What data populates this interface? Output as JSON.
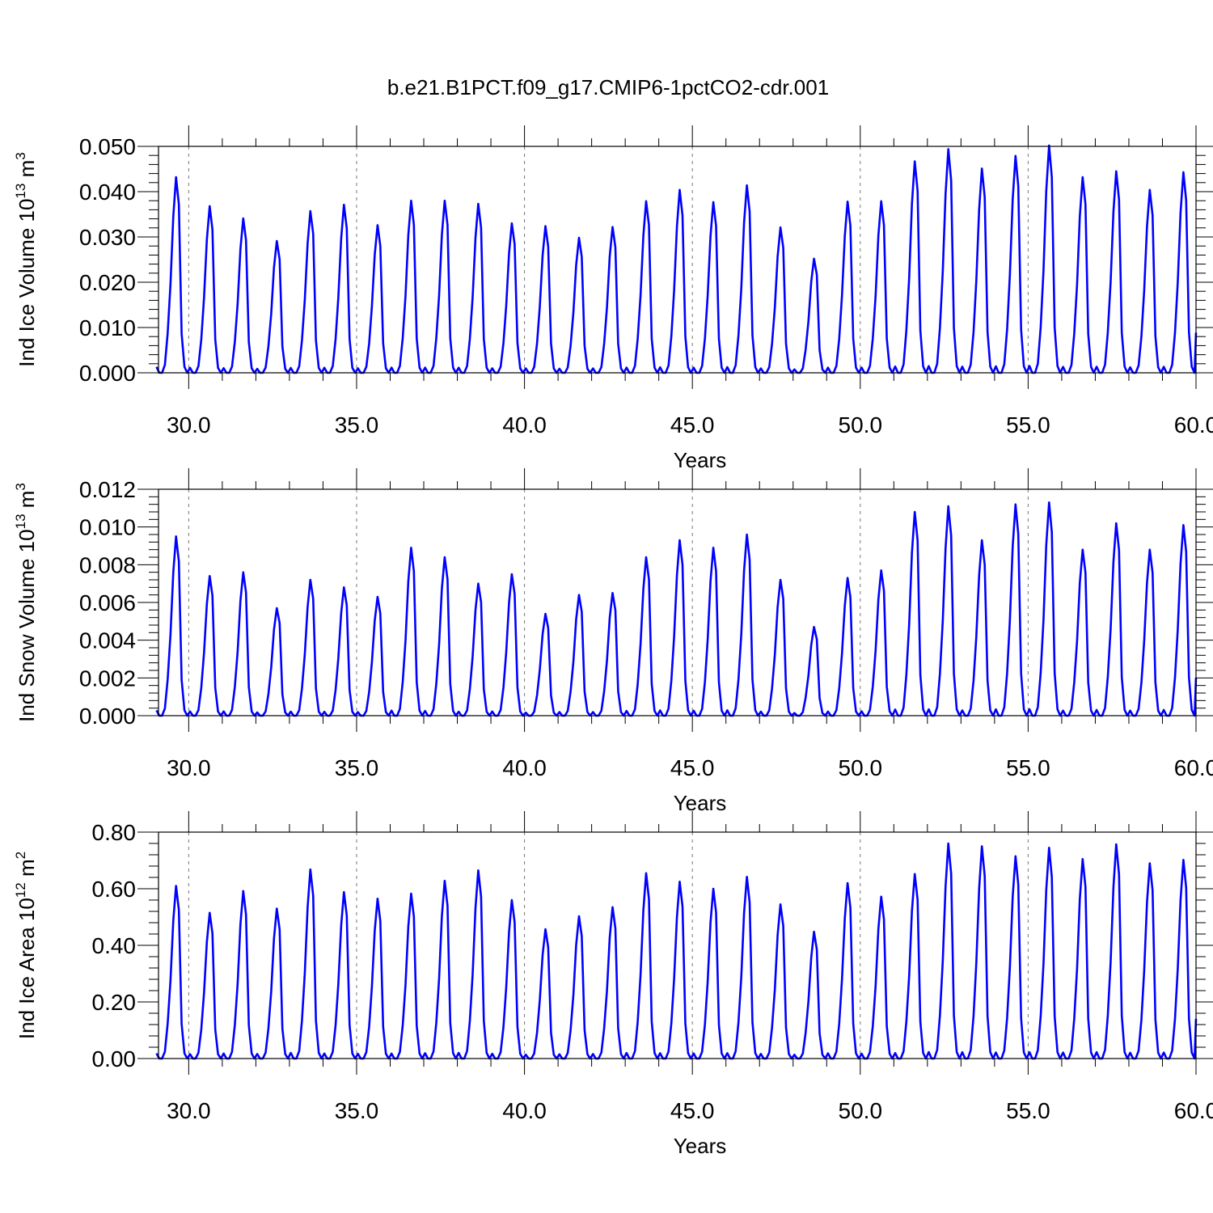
{
  "title": "b.e21.B1PCT.f09_g17.CMIP6-1pctCO2-cdr.001",
  "colors": {
    "line": "#0000ff",
    "grid": "#777777"
  },
  "chart_data": [
    {
      "type": "line",
      "xlabel": "Years",
      "ylabel_main": "Ind Ice Volume 10",
      "ylabel_exp": "13",
      "ylabel_unit": " m",
      "ylabel_unit_exp": "3",
      "xlim": [
        29.1,
        60.0
      ],
      "ylim": [
        0.0,
        0.05
      ],
      "xticks": [
        30,
        35,
        40,
        45,
        50,
        55,
        60
      ],
      "xtick_labels": [
        "30.0",
        "35.0",
        "40.0",
        "45.0",
        "50.0",
        "55.0",
        "60.0"
      ],
      "yticks": [
        0.0,
        0.01,
        0.02,
        0.03,
        0.04,
        0.05
      ],
      "ytick_labels": [
        "0.000",
        "0.010",
        "0.020",
        "0.030",
        "0.040",
        "0.050"
      ],
      "grid_x": true,
      "x_start": 29.04,
      "x_step": 0.0833333,
      "peaks": [
        0.0432,
        0.0368,
        0.0341,
        0.0291,
        0.0357,
        0.0371,
        0.0326,
        0.038,
        0.038,
        0.0373,
        0.033,
        0.0324,
        0.0298,
        0.0322,
        0.0379,
        0.0404,
        0.0377,
        0.0414,
        0.0321,
        0.0252,
        0.0378,
        0.0379,
        0.0467,
        0.0494,
        0.0451,
        0.0479,
        0.0502,
        0.0432,
        0.0445,
        0.0404,
        0.0443
      ]
    },
    {
      "type": "line",
      "xlabel": "Years",
      "ylabel_main": "Ind Snow Volume 10",
      "ylabel_exp": "13",
      "ylabel_unit": " m",
      "ylabel_unit_exp": "3",
      "xlim": [
        29.1,
        60.0
      ],
      "ylim": [
        0.0,
        0.012
      ],
      "xticks": [
        30,
        35,
        40,
        45,
        50,
        55,
        60
      ],
      "xtick_labels": [
        "30.0",
        "35.0",
        "40.0",
        "45.0",
        "50.0",
        "55.0",
        "60.0"
      ],
      "yticks": [
        0.0,
        0.002,
        0.004,
        0.006,
        0.008,
        0.01,
        0.012
      ],
      "ytick_labels": [
        "0.000",
        "0.002",
        "0.004",
        "0.006",
        "0.008",
        "0.010",
        "0.012"
      ],
      "grid_x": true,
      "x_start": 29.04,
      "x_step": 0.0833333,
      "peaks": [
        0.0095,
        0.0074,
        0.0076,
        0.0057,
        0.0072,
        0.0068,
        0.0063,
        0.0089,
        0.0084,
        0.007,
        0.0075,
        0.0054,
        0.0064,
        0.0065,
        0.0084,
        0.0093,
        0.0089,
        0.0096,
        0.0072,
        0.0047,
        0.0073,
        0.0077,
        0.0108,
        0.0111,
        0.0093,
        0.0112,
        0.0113,
        0.0088,
        0.0102,
        0.0088,
        0.0101
      ]
    },
    {
      "type": "line",
      "xlabel": "Years",
      "ylabel_main": "Ind Ice Area 10",
      "ylabel_exp": "12",
      "ylabel_unit": " m",
      "ylabel_unit_exp": "2",
      "xlim": [
        29.1,
        60.0
      ],
      "ylim": [
        0.0,
        0.8
      ],
      "xticks": [
        30,
        35,
        40,
        45,
        50,
        55,
        60
      ],
      "xtick_labels": [
        "30.0",
        "35.0",
        "40.0",
        "45.0",
        "50.0",
        "55.0",
        "60.0"
      ],
      "yticks": [
        0.0,
        0.2,
        0.4,
        0.6,
        0.8
      ],
      "ytick_labels": [
        "0.00",
        "0.20",
        "0.40",
        "0.60",
        "0.80"
      ],
      "grid_x": true,
      "x_start": 29.04,
      "x_step": 0.0833333,
      "peaks": [
        0.61,
        0.515,
        0.592,
        0.53,
        0.668,
        0.588,
        0.565,
        0.583,
        0.628,
        0.665,
        0.56,
        0.457,
        0.503,
        0.535,
        0.655,
        0.625,
        0.6,
        0.642,
        0.545,
        0.448,
        0.62,
        0.572,
        0.652,
        0.76,
        0.75,
        0.715,
        0.745,
        0.705,
        0.757,
        0.69,
        0.702
      ]
    }
  ]
}
